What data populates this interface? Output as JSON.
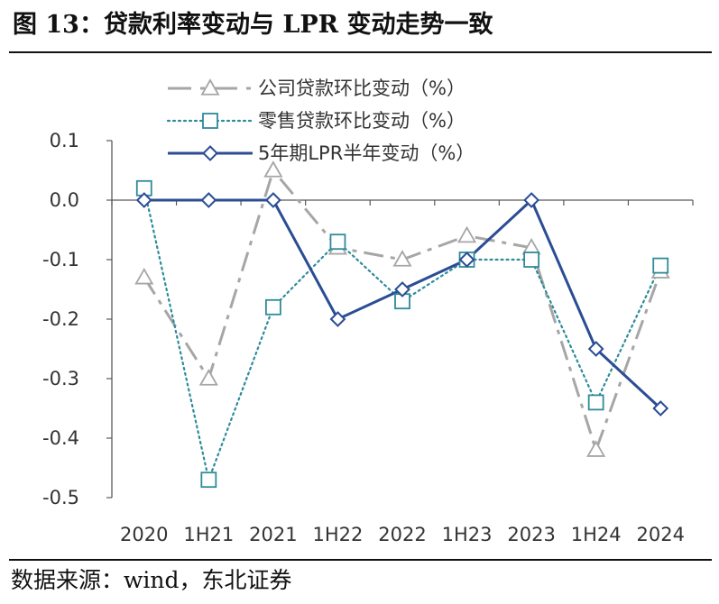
{
  "title": "图 13：贷款利率变动与 LPR 变动走势一致",
  "source": "数据来源：wind，东北证券",
  "chart_data": {
    "type": "line",
    "title": "图 13：贷款利率变动与 LPR 变动走势一致",
    "xlabel": "",
    "ylabel": "",
    "categories": [
      "2020",
      "1H21",
      "2021",
      "1H22",
      "2022",
      "1H23",
      "2023",
      "1H24",
      "2024"
    ],
    "ylim": [
      -0.5,
      0.1
    ],
    "yticks": [
      0.1,
      0.0,
      -0.1,
      -0.2,
      -0.3,
      -0.4,
      -0.5
    ],
    "ytick_labels": [
      "0.1",
      "0.0",
      "-0.1",
      "-0.2",
      "-0.3",
      "-0.4",
      "-0.5"
    ],
    "grid": false,
    "legend_position": "top-center",
    "series": [
      {
        "name": "公司贷款环比变动（%）",
        "values": [
          -0.13,
          -0.3,
          0.05,
          -0.08,
          -0.1,
          -0.06,
          -0.08,
          -0.42,
          -0.12
        ],
        "color": "#a6a6a6",
        "style": "dash-dot",
        "marker": "triangle"
      },
      {
        "name": "零售贷款环比变动（%）",
        "values": [
          0.02,
          -0.47,
          -0.18,
          -0.07,
          -0.17,
          -0.1,
          -0.1,
          -0.34,
          -0.11
        ],
        "color": "#2e8b9a",
        "style": "dotted",
        "marker": "square"
      },
      {
        "name": "5年期LPR半年变动（%）",
        "values": [
          0.0,
          0.0,
          0.0,
          -0.2,
          -0.15,
          -0.1,
          0.0,
          -0.25,
          -0.35
        ],
        "color": "#2b4d94",
        "style": "solid",
        "marker": "diamond"
      }
    ]
  }
}
